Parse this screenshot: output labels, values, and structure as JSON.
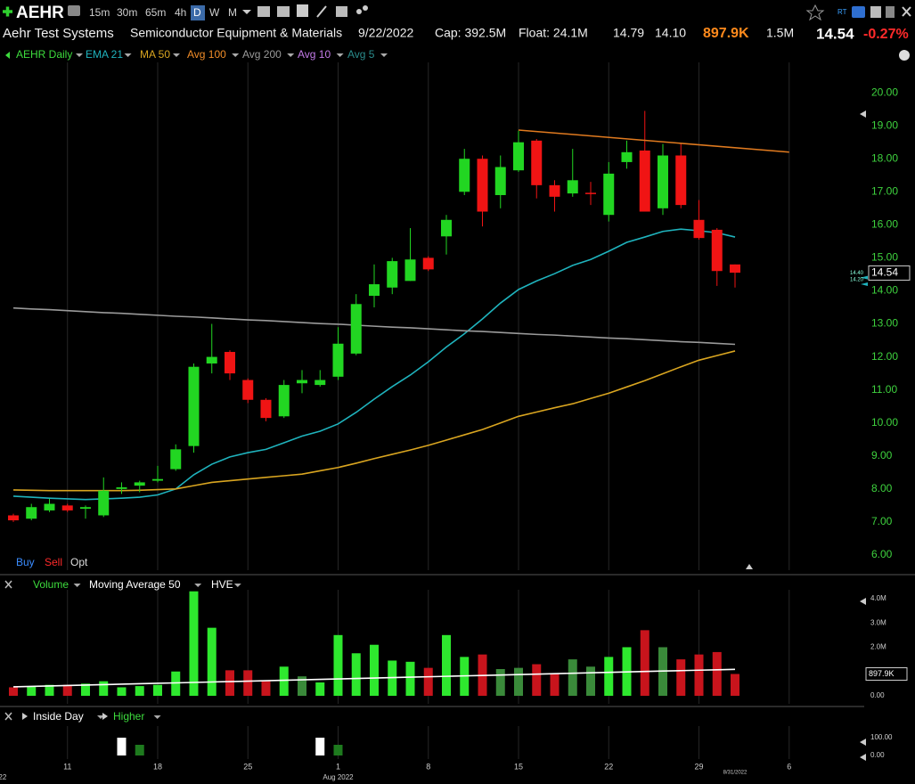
{
  "toolbar": {
    "symbol": "AEHR",
    "timeframes": [
      "15m",
      "30m",
      "65m",
      "4h",
      "D",
      "W",
      "M"
    ],
    "rt": "RT"
  },
  "quote": {
    "name": "Aehr Test Systems",
    "industry": "Semiconductor Equipment & Materials",
    "date": "9/22/2022",
    "cap": "Cap: 392.5M",
    "float": "Float: 24.1M",
    "high": "14.79",
    "low": "14.10",
    "volume": "897.9K",
    "avg_volume": "1.5M",
    "last": "14.54",
    "change": "-0.27%"
  },
  "order_buttons": [
    "Buy",
    "Sell",
    "Opt"
  ],
  "chart_data": [
    {
      "type": "candlestick",
      "name": "AEHR Daily",
      "legend_color": "#3ddc3d",
      "up_color": "#22d622",
      "down_color": "#f01414",
      "xlim": [
        -0.74,
        47.16
      ],
      "ylim": [
        5.54,
        20.92
      ],
      "grid": "x",
      "yticks": [
        {
          "value": 6,
          "label": "6.00"
        },
        {
          "value": 7,
          "label": "7.00"
        },
        {
          "value": 8,
          "label": "8.00"
        },
        {
          "value": 9,
          "label": "9.00"
        },
        {
          "value": 10,
          "label": "10.00"
        },
        {
          "value": 11,
          "label": "11.00"
        },
        {
          "value": 12,
          "label": "12.00"
        },
        {
          "value": 13,
          "label": "13.00"
        },
        {
          "value": 14,
          "label": "14.00"
        },
        {
          "value": 15,
          "label": "15.00"
        },
        {
          "value": 16,
          "label": "16.00"
        },
        {
          "value": 17,
          "label": "17.00"
        },
        {
          "value": 18,
          "label": "18.00"
        },
        {
          "value": 19,
          "label": "19.00"
        },
        {
          "value": 20,
          "label": "20.00"
        }
      ],
      "open": [
        7.2,
        7.1,
        7.35,
        7.5,
        7.4,
        7.2,
        8.0,
        8.1,
        8.25,
        8.6,
        9.3,
        11.8,
        12.15,
        11.3,
        10.7,
        10.2,
        11.2,
        11.15,
        11.4,
        12.1,
        13.85,
        14.1,
        14.3,
        15.0,
        15.65,
        17.0,
        18.0,
        16.9,
        17.65,
        18.55,
        17.2,
        16.95,
        16.97,
        16.3,
        17.9,
        18.25,
        16.5,
        18.1,
        16.15,
        15.85,
        14.8
      ],
      "high": [
        7.25,
        7.55,
        7.7,
        7.55,
        7.5,
        8.35,
        8.2,
        8.25,
        8.7,
        9.35,
        11.8,
        13.0,
        12.2,
        11.35,
        10.75,
        11.3,
        11.6,
        11.6,
        12.9,
        13.9,
        14.8,
        15.0,
        15.9,
        15.05,
        16.3,
        18.3,
        18.1,
        18.1,
        18.85,
        18.6,
        17.35,
        18.3,
        17.3,
        17.9,
        18.55,
        19.45,
        18.45,
        18.45,
        16.75,
        15.9,
        14.8
      ],
      "low": [
        7.0,
        7.05,
        7.3,
        7.3,
        7.1,
        7.15,
        7.85,
        7.9,
        8.2,
        8.55,
        9.1,
        11.5,
        11.3,
        10.6,
        10.05,
        10.15,
        10.9,
        11.1,
        11.3,
        12.05,
        13.5,
        13.9,
        14.3,
        14.6,
        15.1,
        16.9,
        15.95,
        16.5,
        17.6,
        16.8,
        16.4,
        16.85,
        16.6,
        16.1,
        17.7,
        16.4,
        16.3,
        16.5,
        15.55,
        14.15,
        14.1
      ],
      "close": [
        7.05,
        7.45,
        7.55,
        7.35,
        7.45,
        7.95,
        8.05,
        8.2,
        8.3,
        9.2,
        11.7,
        12.0,
        11.5,
        10.7,
        10.15,
        11.15,
        11.3,
        11.3,
        12.4,
        13.6,
        14.2,
        14.9,
        14.95,
        14.65,
        16.15,
        18.0,
        16.4,
        17.75,
        18.5,
        17.2,
        16.85,
        17.35,
        16.93,
        17.55,
        18.2,
        16.4,
        18.1,
        16.6,
        15.6,
        14.6,
        14.55
      ],
      "series": [
        {
          "name": "EMA 21",
          "color": "#1fb3bd",
          "values": [
            7.78,
            7.75,
            7.72,
            7.7,
            7.68,
            7.7,
            7.72,
            7.75,
            7.82,
            8.0,
            8.43,
            8.75,
            8.97,
            9.1,
            9.2,
            9.4,
            9.6,
            9.75,
            9.97,
            10.32,
            10.72,
            11.1,
            11.45,
            11.85,
            12.3,
            12.7,
            13.15,
            13.63,
            14.04,
            14.3,
            14.52,
            14.77,
            14.95,
            15.2,
            15.47,
            15.63,
            15.8,
            15.87,
            15.82,
            15.76,
            15.63
          ]
        },
        {
          "name": "MA 50",
          "color": "#d9a520",
          "values": [
            7.97,
            7.96,
            7.95,
            7.95,
            7.95,
            7.95,
            7.95,
            7.96,
            7.98,
            8.0,
            8.1,
            8.2,
            8.25,
            8.3,
            8.35,
            8.4,
            8.45,
            8.55,
            8.65,
            8.78,
            8.92,
            9.05,
            9.18,
            9.32,
            9.48,
            9.64,
            9.8,
            10.0,
            10.2,
            10.33,
            10.46,
            10.58,
            10.74,
            10.9,
            11.09,
            11.28,
            11.49,
            11.7,
            11.9,
            12.04,
            12.18
          ]
        },
        {
          "name": "Avg 100",
          "color": "#f08c28"
        },
        {
          "name": "Avg 200",
          "color": "#9a9a9a",
          "values": [
            13.48,
            13.45,
            13.43,
            13.4,
            13.37,
            13.34,
            13.32,
            13.29,
            13.26,
            13.23,
            13.21,
            13.18,
            13.15,
            13.12,
            13.1,
            13.07,
            13.04,
            13.01,
            12.99,
            12.96,
            12.93,
            12.9,
            12.88,
            12.85,
            12.82,
            12.79,
            12.77,
            12.74,
            12.71,
            12.68,
            12.66,
            12.63,
            12.6,
            12.57,
            12.55,
            12.52,
            12.49,
            12.46,
            12.44,
            12.41,
            12.38
          ]
        },
        {
          "name": "Avg 10",
          "color": "#c37be8"
        },
        {
          "name": "Avg 5",
          "color": "#2a8c8c"
        }
      ],
      "trendline": {
        "color": "#e07a1f",
        "x": [
          28,
          43
        ],
        "y": [
          18.87,
          18.2
        ]
      },
      "price_markers": [
        {
          "value": 14.54,
          "label": "14.54"
        },
        {
          "value": 14.4,
          "label": "14.40"
        },
        {
          "value": 14.2,
          "label": "14.20"
        }
      ]
    },
    {
      "type": "bar",
      "xlim": [
        -0.74,
        47.16
      ],
      "ylim": [
        0,
        4400000
      ],
      "header": [
        "Volume",
        "Moving Average 50",
        "HVE"
      ],
      "yticks": [
        {
          "value": 0,
          "label": "0.00"
        },
        {
          "value": 2000000,
          "label": "2.0M"
        },
        {
          "value": 3000000,
          "label": "3.0M"
        },
        {
          "value": 4000000,
          "label": "4.0M"
        }
      ],
      "values": [
        350000,
        400000,
        450000,
        450000,
        500000,
        600000,
        350000,
        400000,
        450000,
        1000000,
        4300000,
        2800000,
        1050000,
        1050000,
        600000,
        1200000,
        800000,
        550000,
        2500000,
        1750000,
        2100000,
        1450000,
        1400000,
        1150000,
        2500000,
        1600000,
        1700000,
        1100000,
        1150000,
        1300000,
        900000,
        1500000,
        1200000,
        1600000,
        2000000,
        2700000,
        2000000,
        1500000,
        1700000,
        1800000,
        897900
      ],
      "colors": [
        "#c8141c",
        "#2ee82e",
        "#2ee82e",
        "#c8141c",
        "#2ee82e",
        "#2ee82e",
        "#2ee82e",
        "#2ee82e",
        "#2ee82e",
        "#2ee82e",
        "#2ee82e",
        "#2ee82e",
        "#c8141c",
        "#c8141c",
        "#c8141c",
        "#2ee82e",
        "#3a8a3a",
        "#2ee82e",
        "#2ee82e",
        "#2ee82e",
        "#2ee82e",
        "#2ee82e",
        "#2ee82e",
        "#c8141c",
        "#2ee82e",
        "#2ee82e",
        "#c8141c",
        "#3a8a3a",
        "#3a8a3a",
        "#c8141c",
        "#c8141c",
        "#3a8a3a",
        "#3a8a3a",
        "#2ee82e",
        "#2ee82e",
        "#c8141c",
        "#3a8a3a",
        "#c8141c",
        "#c8141c",
        "#c8141c",
        "#c8141c"
      ],
      "series": [
        {
          "name": "Moving Average 50",
          "color": "#ffffff",
          "values": [
            370000,
            388000,
            406000,
            424000,
            442000,
            460000,
            478000,
            496000,
            514000,
            532000,
            550000,
            568000,
            586000,
            604000,
            622000,
            640000,
            658000,
            676000,
            694000,
            712000,
            730000,
            748000,
            766000,
            784000,
            802000,
            820000,
            838000,
            856000,
            874000,
            892000,
            910000,
            928000,
            946000,
            964000,
            982000,
            1000000,
            1018000,
            1036000,
            1054000,
            1072000,
            1090000
          ]
        }
      ],
      "last_marker": {
        "value": 897900,
        "label": "897.9K"
      }
    },
    {
      "type": "bar",
      "xlim": [
        -0.74,
        47.16
      ],
      "ylim": [
        0,
        100
      ],
      "yticks": [
        {
          "value": 0,
          "label": "0.00"
        },
        {
          "value": 100,
          "label": "100.00"
        }
      ],
      "series": [
        {
          "name": "Inside Day",
          "color": "#ffffff",
          "values": [
            null,
            null,
            null,
            null,
            null,
            null,
            100,
            null,
            null,
            null,
            null,
            null,
            null,
            null,
            null,
            null,
            null,
            100,
            null,
            null,
            null,
            null,
            null,
            null,
            null,
            null,
            null,
            null,
            null,
            null,
            null,
            null,
            null,
            null,
            null,
            null,
            null,
            null,
            null,
            null,
            null
          ]
        },
        {
          "name": "Higher",
          "color": "#1e7a1e",
          "values": [
            null,
            null,
            null,
            null,
            null,
            null,
            null,
            60,
            null,
            null,
            null,
            null,
            null,
            null,
            null,
            null,
            null,
            null,
            60,
            null,
            null,
            null,
            null,
            null,
            null,
            null,
            null,
            null,
            null,
            null,
            null,
            null,
            null,
            null,
            null,
            null,
            null,
            null,
            null,
            null,
            null
          ]
        }
      ],
      "xticks": [
        {
          "value": 3,
          "label": "11"
        },
        {
          "value": 8,
          "label": "18"
        },
        {
          "value": 13,
          "label": "25"
        },
        {
          "value": 18,
          "label": "1"
        },
        {
          "value": 23,
          "label": "8"
        },
        {
          "value": 28,
          "label": "15"
        },
        {
          "value": 33,
          "label": "22"
        },
        {
          "value": 38,
          "label": "29"
        },
        {
          "value": 43,
          "label": "6"
        }
      ],
      "month_labels": [
        {
          "value": -0.6,
          "label": "22"
        },
        {
          "value": 18,
          "label": "Aug 2022"
        }
      ],
      "cursor_label": {
        "value": 40,
        "label": "8/31/2022"
      }
    }
  ]
}
